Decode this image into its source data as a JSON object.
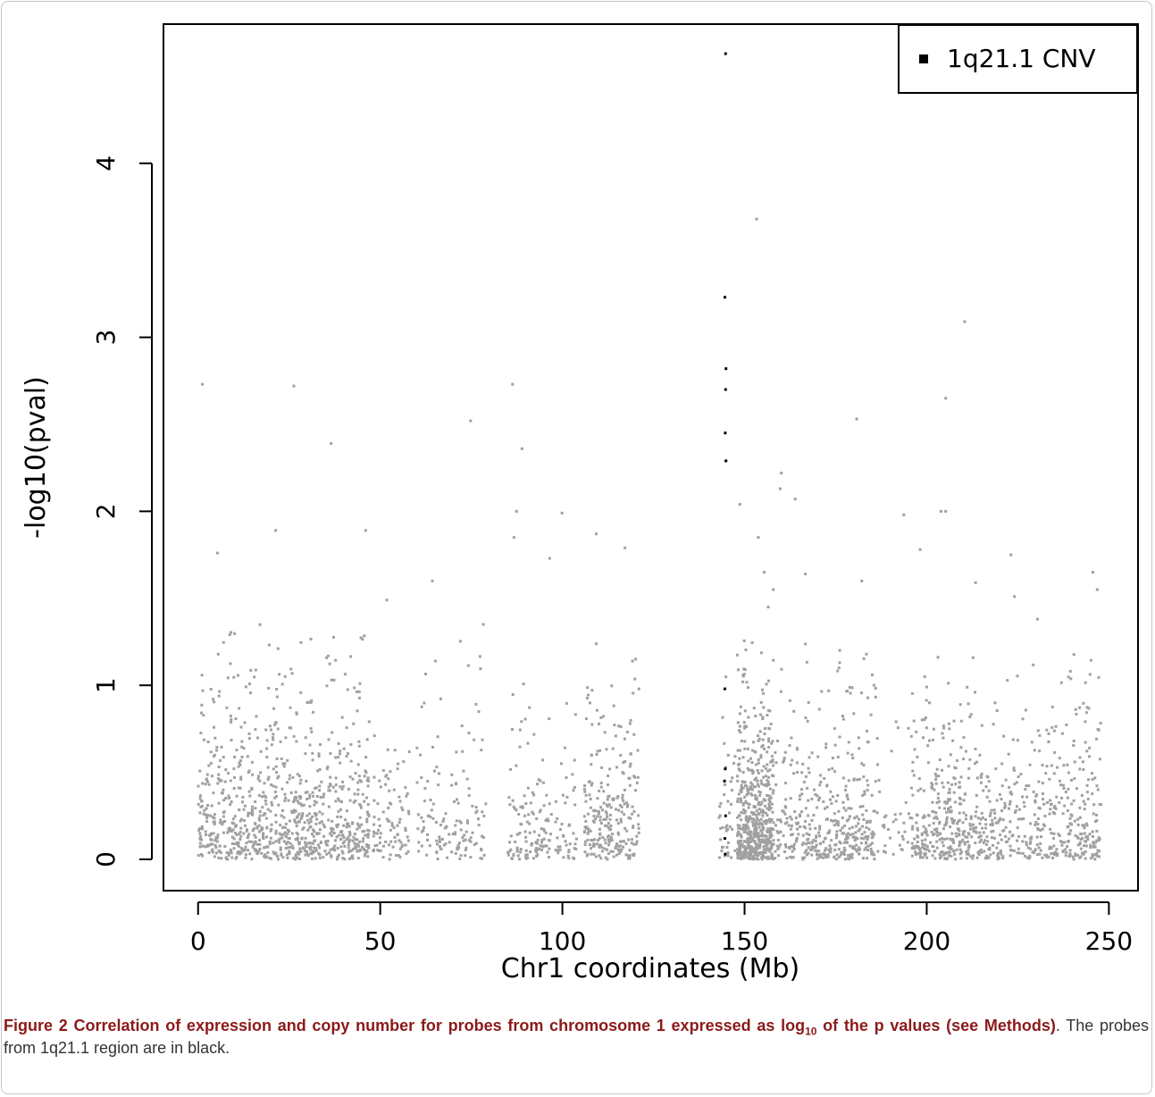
{
  "chart_data": {
    "type": "scatter",
    "xlabel": "Chr1 coordinates (Mb)",
    "ylabel": "-log10(pval)",
    "xlim": [
      -9.5,
      258
    ],
    "ylim": [
      -0.18,
      4.8
    ],
    "xticks": [
      0,
      50,
      100,
      150,
      200,
      250
    ],
    "yticks": [
      0,
      1,
      2,
      3,
      4
    ],
    "xtick_labels": [
      "0",
      "50",
      "100",
      "150",
      "200",
      "250"
    ],
    "ytick_labels": [
      "0",
      "1",
      "2",
      "3",
      "4"
    ],
    "legend": {
      "position": "top-right",
      "entries": [
        {
          "label": "1q21.1 CNV",
          "color": "#000000"
        }
      ]
    },
    "series": [
      {
        "name": "1q21.1 CNV",
        "color": "#000000",
        "x": [
          144.8,
          144.6,
          144.9,
          144.8,
          144.7,
          144.9,
          144.6,
          144.7,
          144.5,
          144.8,
          144.6,
          144.7
        ],
        "y": [
          4.63,
          3.23,
          2.82,
          2.7,
          2.45,
          2.29,
          0.98,
          0.52,
          0.45,
          0.25,
          0.12,
          0.03
        ]
      },
      {
        "color": "#a0a0a0",
        "x": [
          1.2,
          26.3,
          36.5,
          46.0,
          21.3,
          5.3,
          74.8,
          86.3,
          87.4,
          88.9,
          86.7,
          109.3,
          96.5,
          117.2,
          99.9,
          64.3,
          51.8,
          78.3,
          120.1,
          153.3,
          210.4,
          180.8,
          205.2,
          203.9,
          182.2,
          193.7,
          163.9,
          160.1,
          159.8,
          148.7,
          153.8,
          155.4,
          157.9,
          213.4,
          223.1,
          224.1,
          230.4,
          245.6,
          246.8,
          156.5,
          166.7,
          198.2,
          205.2
        ],
        "y": [
          2.73,
          2.72,
          2.39,
          1.89,
          1.89,
          1.76,
          2.52,
          2.73,
          2.0,
          2.36,
          1.85,
          1.87,
          1.73,
          1.79,
          1.99,
          1.6,
          1.49,
          1.35,
          1.15,
          3.68,
          3.09,
          2.53,
          2.65,
          2.0,
          1.6,
          1.98,
          2.07,
          2.22,
          2.13,
          2.04,
          1.85,
          1.65,
          1.55,
          1.59,
          1.75,
          1.51,
          1.38,
          1.65,
          1.55,
          1.45,
          1.64,
          1.78,
          2.0
        ],
        "clusters": [
          {
            "x_min": 0,
            "x_max": 47,
            "count": 900,
            "y_scale": 0.34,
            "tail_max": 1.35
          },
          {
            "x_min": 48,
            "x_max": 58,
            "count": 90,
            "y_scale": 0.3,
            "tail_max": 1.0
          },
          {
            "x_min": 60,
            "x_max": 79,
            "count": 140,
            "y_scale": 0.3,
            "tail_max": 1.3
          },
          {
            "x_min": 85,
            "x_max": 97,
            "count": 120,
            "y_scale": 0.3,
            "tail_max": 1.15
          },
          {
            "x_min": 98,
            "x_max": 104,
            "count": 45,
            "y_scale": 0.28,
            "tail_max": 1.05
          },
          {
            "x_min": 106,
            "x_max": 121,
            "count": 250,
            "y_scale": 0.33,
            "tail_max": 1.25
          },
          {
            "x_min": 143,
            "x_max": 148,
            "count": 40,
            "y_scale": 0.3,
            "tail_max": 1.1
          },
          {
            "x_min": 148,
            "x_max": 158,
            "count": 550,
            "y_scale": 0.3,
            "tail_max": 1.4
          },
          {
            "x_min": 158,
            "x_max": 186,
            "count": 420,
            "y_scale": 0.3,
            "tail_max": 1.25
          },
          {
            "x_min": 186,
            "x_max": 196,
            "count": 40,
            "y_scale": 0.3,
            "tail_max": 1.25
          },
          {
            "x_min": 196,
            "x_max": 212,
            "count": 300,
            "y_scale": 0.3,
            "tail_max": 1.25
          },
          {
            "x_min": 212,
            "x_max": 240,
            "count": 350,
            "y_scale": 0.28,
            "tail_max": 1.3
          },
          {
            "x_min": 240,
            "x_max": 248,
            "count": 120,
            "y_scale": 0.32,
            "tail_max": 1.2
          }
        ]
      }
    ]
  },
  "caption": {
    "label": "Figure 2",
    "title_pre": "Correlation of expression and copy number for probes from chromosome 1 expressed as log",
    "title_sub": "10",
    "title_post": " of the p values (see ",
    "title_methods": "Methods)",
    "body": ". The probes from 1q21.1 region are in black."
  }
}
